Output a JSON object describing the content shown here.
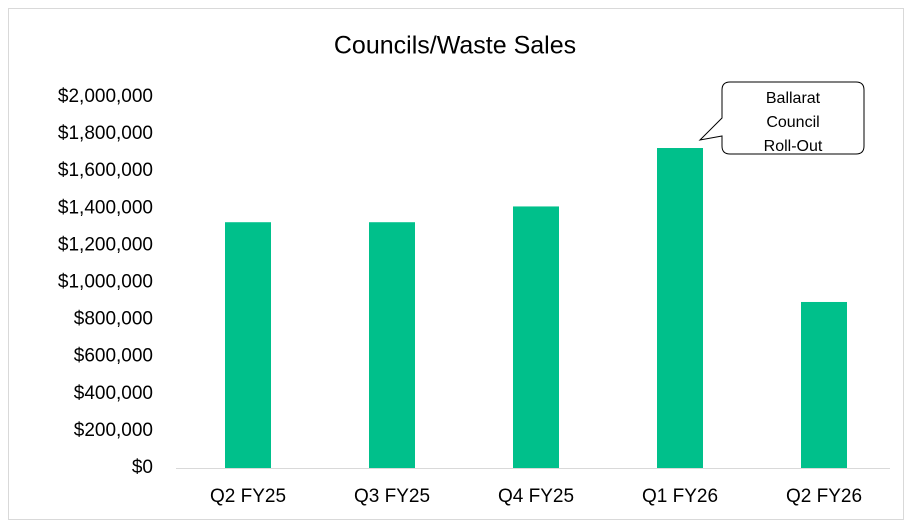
{
  "chart_data": {
    "type": "bar",
    "title": "Councils/Waste Sales",
    "categories": [
      "Q2 FY25",
      "Q3 FY25",
      "Q4 FY25",
      "Q1 FY26",
      "Q2 FY26"
    ],
    "values": [
      1325000,
      1325000,
      1410000,
      1725000,
      895000
    ],
    "color": "#00c08b",
    "ylim": [
      0,
      2000000
    ],
    "yticks": [
      {
        "value": 0,
        "label": "$0"
      },
      {
        "value": 200000,
        "label": "$200,000"
      },
      {
        "value": 400000,
        "label": "$400,000"
      },
      {
        "value": 600000,
        "label": "$600,000"
      },
      {
        "value": 800000,
        "label": "$800,000"
      },
      {
        "value": 1000000,
        "label": "$1,000,000"
      },
      {
        "value": 1200000,
        "label": "$1,200,000"
      },
      {
        "value": 1400000,
        "label": "$1,400,000"
      },
      {
        "value": 1600000,
        "label": "$1,600,000"
      },
      {
        "value": 1800000,
        "label": "$1,800,000"
      },
      {
        "value": 2000000,
        "label": "$2,000,000"
      }
    ],
    "grid": false,
    "annotation": [
      "Ballarat",
      "Council",
      "Roll-Out"
    ]
  }
}
